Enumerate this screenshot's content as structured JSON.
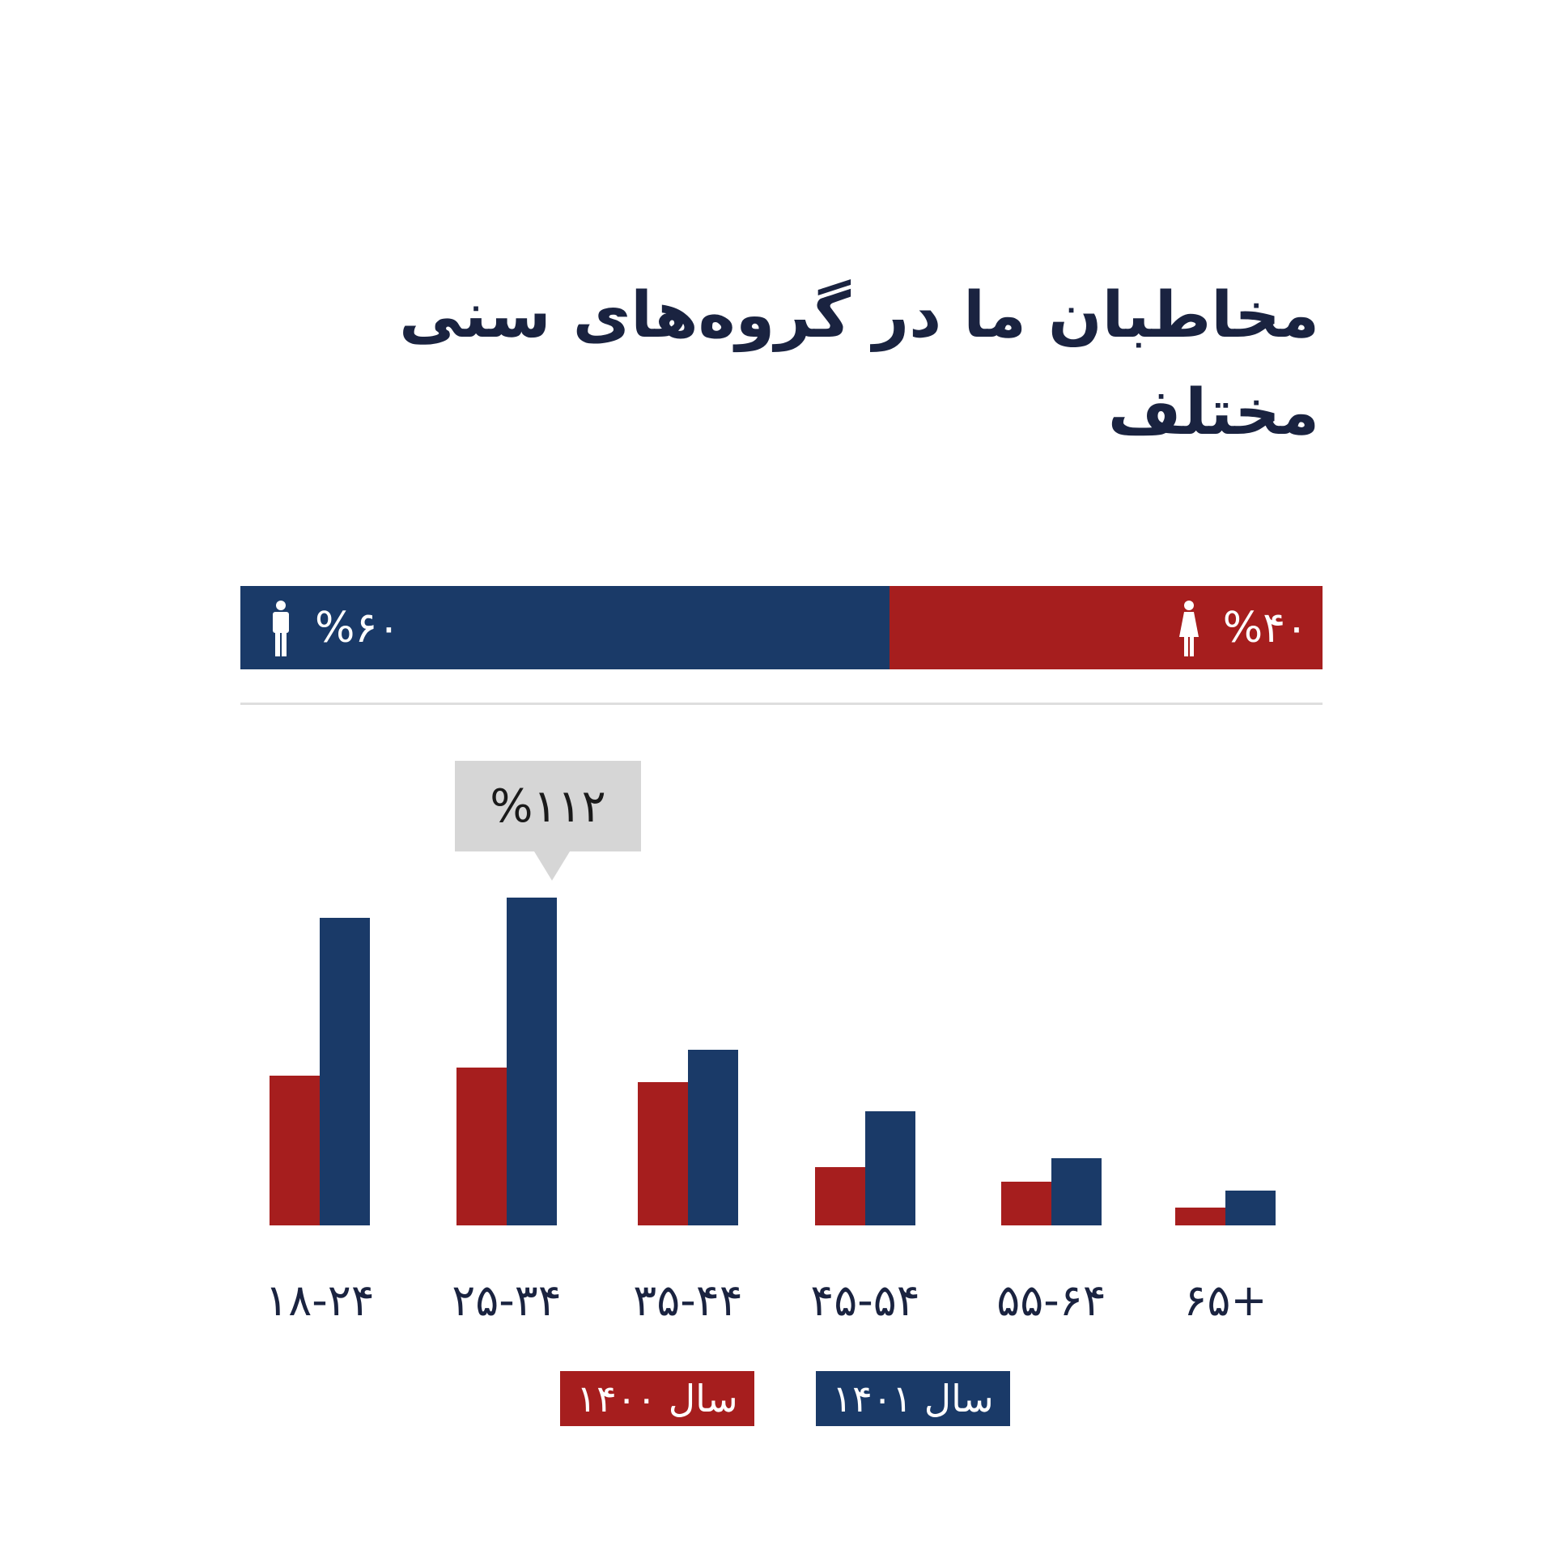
{
  "title": "مخاطبان ما  در گروه‌های سنی مختلف",
  "gender": {
    "male": {
      "label": "%۶۰",
      "value": 60,
      "icon": "male-person-icon",
      "color": "#1a3a68"
    },
    "female": {
      "label": "%۴۰",
      "value": 40,
      "icon": "female-person-icon",
      "color": "#a61e1e"
    }
  },
  "callout": {
    "label": "%۱۱۲",
    "target": "۲۵-۳۴ سال ۱۴۰۱"
  },
  "legend": [
    {
      "label": "سال ۱۴۰۰",
      "color": "#a61e1e"
    },
    {
      "label": "سال ۱۴۰۱",
      "color": "#1a3a68"
    }
  ],
  "x_labels": [
    "۱۸-۲۴",
    "۲۵-۳۴",
    "۳۵-۴۴",
    "۴۵-۵۴",
    "۵۵-۶۴",
    "۶۵+"
  ],
  "colors": {
    "series_1400": "#a61e1e",
    "series_1401": "#1a3a68",
    "title": "#1a2340",
    "callout_bg": "#d6d6d6"
  },
  "chart_data": {
    "type": "bar",
    "title": "مخاطبان ما  در گروه‌های سنی مختلف",
    "categories": [
      "18-24",
      "25-34",
      "35-44",
      "45-54",
      "55-64",
      "65+"
    ],
    "series": [
      {
        "name": "سال ۱۴۰۰",
        "values": [
          51,
          54,
          49,
          20,
          15,
          6
        ]
      },
      {
        "name": "سال ۱۴۰۱",
        "values": [
          105,
          112,
          60,
          39,
          23,
          12
        ]
      }
    ],
    "annotations": [
      {
        "category": "25-34",
        "series": "سال ۱۴۰۱",
        "text": "%۱۱۲"
      }
    ],
    "gender_split": {
      "male": 60,
      "female": 40
    },
    "xlabel": "",
    "ylabel": "",
    "ylim": [
      0,
      120
    ],
    "grid": false,
    "legend_position": "bottom"
  }
}
